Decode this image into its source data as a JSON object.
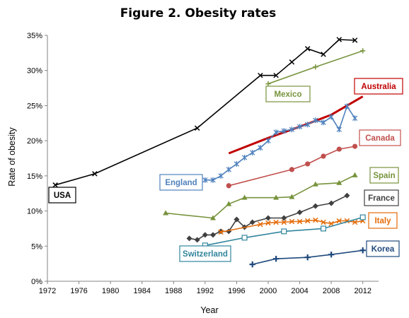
{
  "chart_data": {
    "type": "line",
    "title": "Figure 2. Obesity rates",
    "xlabel": "Year",
    "ylabel": "Rate of obesity",
    "xlim": [
      1972,
      2014
    ],
    "ylim": [
      0,
      35
    ],
    "x_ticks": [
      "1972",
      "1976",
      "1980",
      "1984",
      "1988",
      "1992",
      "1996",
      "2000",
      "2004",
      "2008",
      "2012"
    ],
    "y_ticks": [
      "0%",
      "5%",
      "10%",
      "15%",
      "20%",
      "25%",
      "30%",
      "35%"
    ],
    "grid": false,
    "series": [
      {
        "name": "USA",
        "color": "#000000",
        "marker": "x",
        "x": [
          1973,
          1978,
          1991,
          1999,
          2001,
          2003,
          2005,
          2007,
          2009,
          2011
        ],
        "y": [
          13.7,
          15.3,
          21.8,
          29.3,
          29.3,
          31.2,
          33.1,
          32.3,
          34.4,
          34.3
        ]
      },
      {
        "name": "Mexico",
        "color": "#77933c",
        "marker": "+",
        "x": [
          2000,
          2006,
          2012
        ],
        "y": [
          28.1,
          30.5,
          32.8
        ]
      },
      {
        "name": "Australia",
        "color": "#c00000",
        "marker": "none",
        "thick": true,
        "x": [
          1995,
          2000,
          2005,
          2008,
          2012
        ],
        "y": [
          18.2,
          20.4,
          22.4,
          23.7,
          26.3
        ]
      },
      {
        "name": "England",
        "color": "#4f81bd",
        "marker": "asterisk",
        "x": [
          1992,
          1993,
          1994,
          1995,
          1996,
          1997,
          1998,
          1999,
          2000,
          2001,
          2002,
          2003,
          2004,
          2005,
          2006,
          2007,
          2008,
          2009,
          2010,
          2011
        ],
        "y": [
          14.4,
          14.4,
          15.0,
          15.9,
          16.7,
          17.6,
          18.3,
          19.0,
          20.0,
          21.2,
          21.4,
          21.6,
          22.0,
          22.3,
          22.9,
          22.6,
          23.4,
          21.6,
          24.9,
          23.2
        ]
      },
      {
        "name": "Canada",
        "color": "#c0504d",
        "marker": "circle",
        "x": [
          1995,
          2003,
          2005,
          2007,
          2009,
          2011
        ],
        "y": [
          13.6,
          15.9,
          16.7,
          17.8,
          18.8,
          19.2
        ]
      },
      {
        "name": "Spain",
        "color": "#77933c",
        "marker": "triangle",
        "x": [
          1987,
          1993,
          1995,
          1997,
          2001,
          2003,
          2006,
          2009,
          2011
        ],
        "y": [
          9.7,
          9.0,
          11.0,
          11.9,
          11.9,
          12.0,
          13.8,
          14.0,
          15.1
        ]
      },
      {
        "name": "France",
        "color": "#404040",
        "marker": "diamond",
        "x": [
          1990,
          1991,
          1992,
          1993,
          1994,
          1995,
          1996,
          1997,
          1998,
          2000,
          2002,
          2004,
          2006,
          2008,
          2010
        ],
        "y": [
          6.1,
          5.9,
          6.6,
          6.6,
          7.1,
          7.1,
          8.8,
          7.7,
          8.4,
          9.0,
          9.0,
          9.8,
          10.7,
          11.1,
          12.2
        ]
      },
      {
        "name": "Italy",
        "color": "#e46c0a",
        "marker": "x",
        "x": [
          1994,
          1999,
          2000,
          2001,
          2002,
          2003,
          2004,
          2005,
          2006,
          2007,
          2008,
          2009,
          2010,
          2011,
          2012
        ],
        "y": [
          7.0,
          8.1,
          8.3,
          8.4,
          8.4,
          8.5,
          8.5,
          8.6,
          8.7,
          8.4,
          8.2,
          8.6,
          8.6,
          8.4,
          8.6
        ]
      },
      {
        "name": "Switzerland",
        "color": "#31859c",
        "marker": "square",
        "x": [
          1992,
          1997,
          2002,
          2007,
          2012
        ],
        "y": [
          5.1,
          6.2,
          7.1,
          7.5,
          9.1
        ]
      },
      {
        "name": "Korea",
        "color": "#1f497d",
        "marker": "plus",
        "x": [
          1998,
          2001,
          2005,
          2008,
          2012
        ],
        "y": [
          2.4,
          3.2,
          3.4,
          3.8,
          4.4
        ]
      }
    ]
  }
}
